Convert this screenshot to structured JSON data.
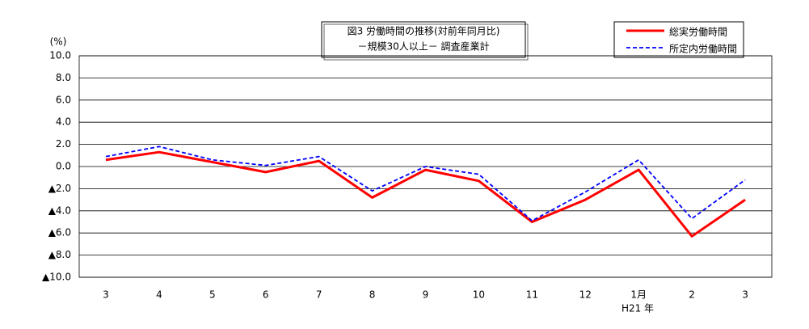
{
  "chart_data": {
    "type": "line",
    "title": "図3 労働時間の推移(対前年同月比)",
    "subtitle": "－規模30人以上－ 調査産業計",
    "y_label": "(%)",
    "annotation": "H21 年",
    "categories": [
      "3",
      "4",
      "5",
      "6",
      "7",
      "8",
      "9",
      "10",
      "11",
      "12",
      "1月",
      "2",
      "3"
    ],
    "series": [
      {
        "name": "総実労働時間",
        "color": "#ff0000",
        "style": "solid",
        "values": [
          0.6,
          1.3,
          0.4,
          -0.5,
          0.5,
          -2.8,
          -0.3,
          -1.3,
          -5.0,
          -3.0,
          -0.3,
          -6.3,
          -3.0
        ]
      },
      {
        "name": "所定内労働時間",
        "color": "#0000ff",
        "style": "dashed",
        "values": [
          0.9,
          1.8,
          0.6,
          0.1,
          0.9,
          -2.2,
          0.0,
          -0.7,
          -4.9,
          -2.3,
          0.6,
          -4.7,
          -1.2
        ]
      }
    ],
    "ylim": [
      -10,
      10
    ],
    "yticks": [
      {
        "value": 10,
        "label": "10.0"
      },
      {
        "value": 8,
        "label": "8.0"
      },
      {
        "value": 6,
        "label": "6.0"
      },
      {
        "value": 4,
        "label": "4.0"
      },
      {
        "value": 2,
        "label": "2.0"
      },
      {
        "value": 0,
        "label": "0.0"
      },
      {
        "value": -2,
        "label": "▲2.0"
      },
      {
        "value": -4,
        "label": "▲4.0"
      },
      {
        "value": -6,
        "label": "▲6.0"
      },
      {
        "value": -8,
        "label": "▲8.0"
      },
      {
        "value": -10,
        "label": "▲10.0"
      }
    ],
    "grid": true
  }
}
